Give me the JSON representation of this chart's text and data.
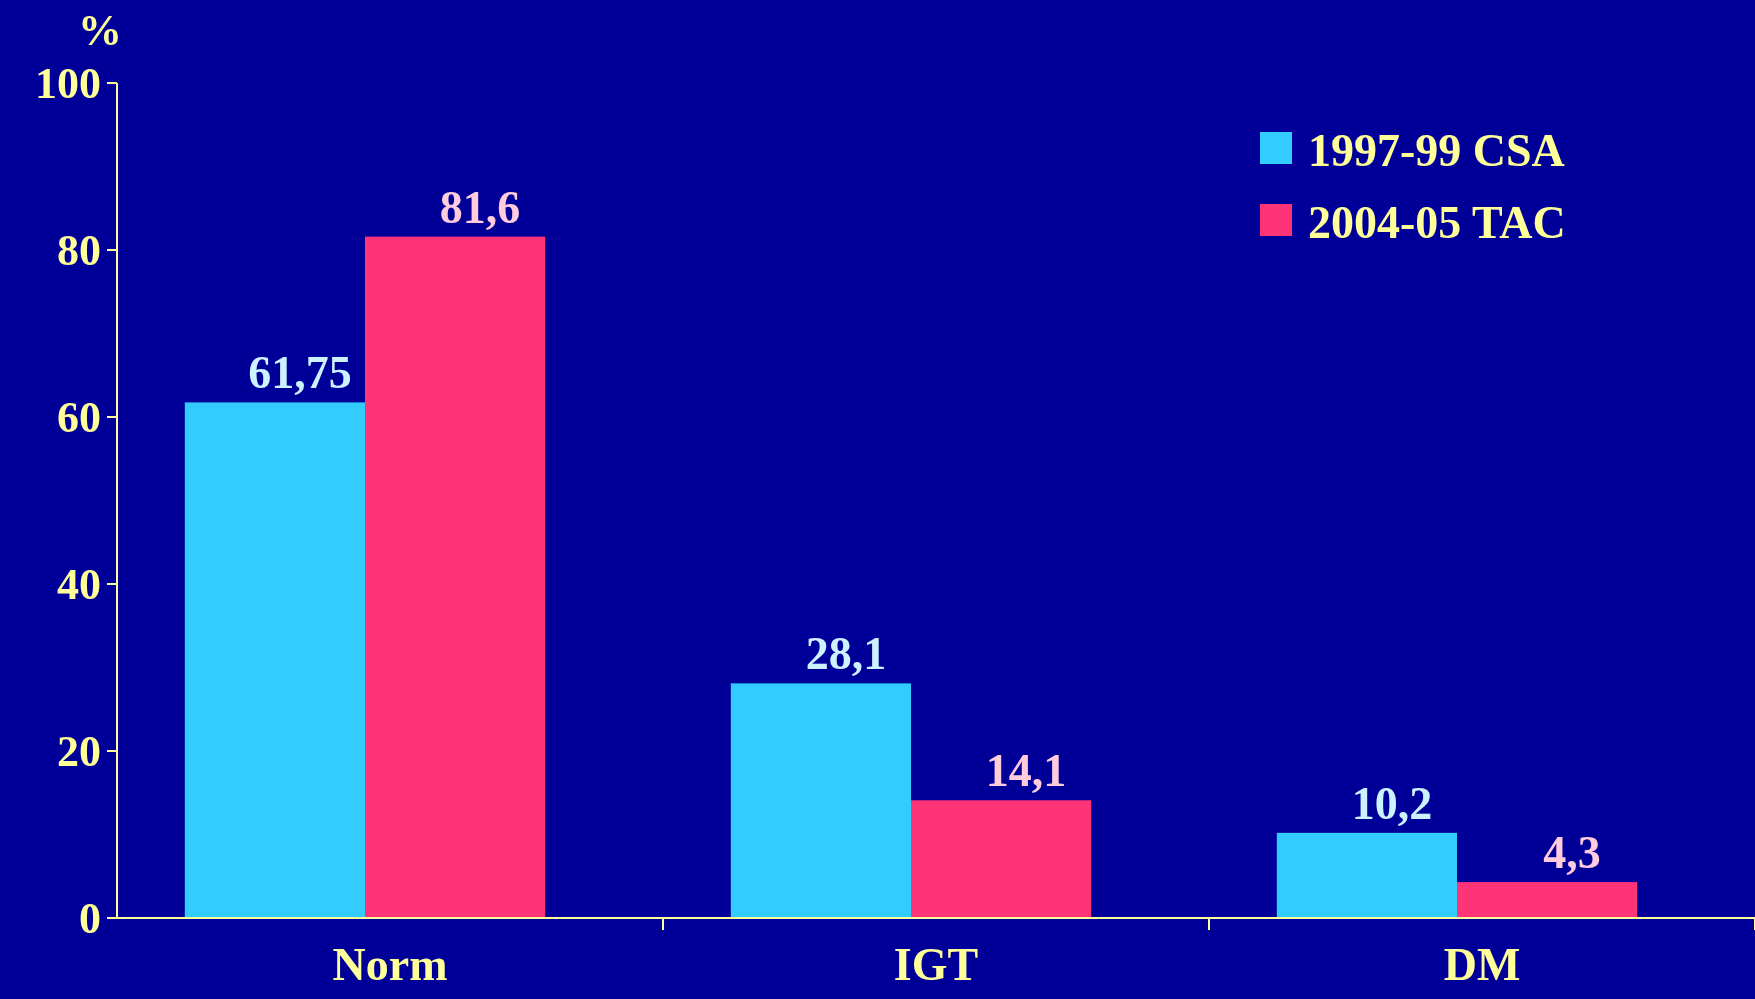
{
  "chart_data": {
    "type": "bar",
    "ylabel": "%",
    "categories": [
      "Norm",
      "IGT",
      "DM"
    ],
    "series": [
      {
        "name": "1997-99 CSA",
        "color": "#33ccff",
        "values": [
          61.75,
          28.1,
          10.2
        ],
        "value_labels": [
          "61,75",
          "28,1",
          "10,2"
        ]
      },
      {
        "name": "2004-05 TAC",
        "color": "#ff3377",
        "values": [
          81.6,
          14.1,
          4.3
        ],
        "value_labels": [
          "81,6",
          "14,1",
          "4,3"
        ]
      }
    ],
    "ylim": [
      0,
      100
    ],
    "yticks": [
      0,
      20,
      40,
      60,
      80,
      100
    ],
    "grid": false,
    "legend": "top right"
  }
}
